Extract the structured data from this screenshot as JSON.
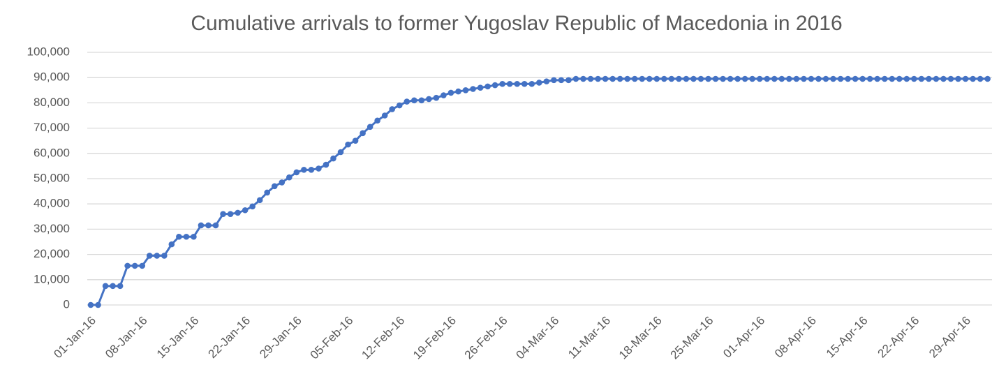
{
  "chart_data": {
    "type": "line",
    "title": "Cumulative arrivals to former Yugoslav Republic of Macedonia in 2016",
    "categories": [
      "01-Jan-16",
      null,
      null,
      null,
      null,
      null,
      null,
      "08-Jan-16",
      null,
      null,
      null,
      null,
      null,
      null,
      "15-Jan-16",
      null,
      null,
      null,
      null,
      null,
      null,
      "22-Jan-16",
      null,
      null,
      null,
      null,
      null,
      null,
      "29-Jan-16",
      null,
      null,
      null,
      null,
      null,
      null,
      "05-Feb-16",
      null,
      null,
      null,
      null,
      null,
      null,
      "12-Feb-16",
      null,
      null,
      null,
      null,
      null,
      null,
      "19-Feb-16",
      null,
      null,
      null,
      null,
      null,
      null,
      "26-Feb-16",
      null,
      null,
      null,
      null,
      null,
      null,
      "04-Mar-16",
      null,
      null,
      null,
      null,
      null,
      null,
      "11-Mar-16",
      null,
      null,
      null,
      null,
      null,
      null,
      "18-Mar-16",
      null,
      null,
      null,
      null,
      null,
      null,
      "25-Mar-16",
      null,
      null,
      null,
      null,
      null,
      null,
      "01-Apr-16",
      null,
      null,
      null,
      null,
      null,
      null,
      "08-Apr-16",
      null,
      null,
      null,
      null,
      null,
      null,
      "15-Apr-16",
      null,
      null,
      null,
      null,
      null,
      null,
      "22-Apr-16",
      null,
      null,
      null,
      null,
      null,
      null,
      "29-Apr-16",
      null,
      null,
      null
    ],
    "series": [
      {
        "color": "#4472c4",
        "values": [
          0,
          0,
          7500,
          7500,
          7500,
          15500,
          15500,
          15500,
          19500,
          19500,
          19500,
          24000,
          27000,
          27000,
          27000,
          31500,
          31500,
          31500,
          36000,
          36000,
          36500,
          37500,
          39000,
          41500,
          44500,
          47000,
          48500,
          50500,
          52500,
          53500,
          53500,
          54000,
          55500,
          58000,
          60500,
          63500,
          65000,
          68000,
          70500,
          73000,
          75000,
          77500,
          79000,
          80500,
          81000,
          81000,
          81500,
          82000,
          83000,
          84000,
          84500,
          85000,
          85500,
          86000,
          86500,
          87000,
          87500,
          87500,
          87500,
          87500,
          87500,
          88000,
          88500,
          89000,
          89000,
          89000,
          89500,
          89500,
          89500,
          89500,
          89500,
          89500,
          89500,
          89500,
          89500,
          89500,
          89500,
          89500,
          89500,
          89500,
          89500,
          89500,
          89500,
          89500,
          89500,
          89500,
          89500,
          89500,
          89500,
          89500,
          89500,
          89500,
          89500,
          89500,
          89500,
          89500,
          89500,
          89500,
          89500,
          89500,
          89500,
          89500,
          89500,
          89500,
          89500,
          89500,
          89500,
          89500,
          89500,
          89500,
          89500,
          89500,
          89500,
          89500,
          89500,
          89500,
          89500,
          89500,
          89500,
          89500,
          89500,
          89500,
          89500
        ]
      }
    ],
    "ylim": [
      0,
      100000
    ],
    "yticks": [
      0,
      {
        "value": 10000,
        "label": "10,000"
      },
      {
        "value": 20000,
        "label": "20,000"
      },
      {
        "value": 30000,
        "label": "30,000"
      },
      {
        "value": 40000,
        "label": "40,000"
      },
      {
        "value": 50000,
        "label": "50,000"
      },
      {
        "value": 60000,
        "label": "60,000"
      },
      {
        "value": 70000,
        "label": "70,000"
      },
      {
        "value": 80000,
        "label": "80,000"
      },
      {
        "value": 90000,
        "label": "90,000"
      },
      {
        "value": 100000,
        "label": "100,000"
      }
    ],
    "grid": true
  }
}
